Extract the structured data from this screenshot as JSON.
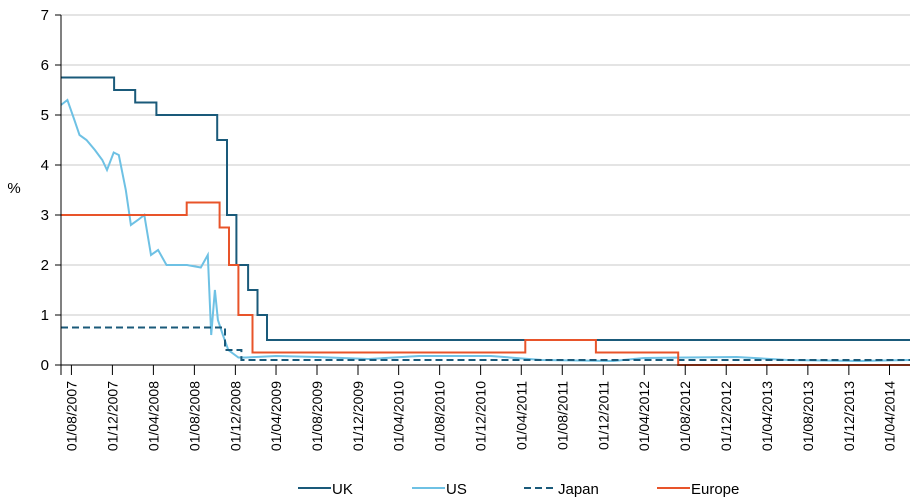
{
  "chart_data": {
    "type": "line",
    "ylabel": "%",
    "ylim": [
      0,
      7
    ],
    "yticks": [
      0,
      1,
      2,
      3,
      4,
      5,
      6,
      7
    ],
    "grid": "horizontal",
    "legend": "bottom",
    "xlim": [
      "2007-07-01",
      "2014-06-01"
    ],
    "xticks": [
      {
        "date": "2007-08-01",
        "label": "01/08/2007"
      },
      {
        "date": "2007-12-01",
        "label": "01/12/2007"
      },
      {
        "date": "2008-04-01",
        "label": "01/04/2008"
      },
      {
        "date": "2008-08-01",
        "label": "01/08/2008"
      },
      {
        "date": "2008-12-01",
        "label": "01/12/2008"
      },
      {
        "date": "2009-04-01",
        "label": "01/04/2009"
      },
      {
        "date": "2009-08-01",
        "label": "01/08/2009"
      },
      {
        "date": "2009-12-01",
        "label": "01/12/2009"
      },
      {
        "date": "2010-04-01",
        "label": "01/04/2010"
      },
      {
        "date": "2010-08-01",
        "label": "01/08/2010"
      },
      {
        "date": "2010-12-01",
        "label": "01/12/2010"
      },
      {
        "date": "2011-04-01",
        "label": "01/04/2011"
      },
      {
        "date": "2011-08-01",
        "label": "01/08/2011"
      },
      {
        "date": "2011-12-01",
        "label": "01/12/2011"
      },
      {
        "date": "2012-04-01",
        "label": "01/04/2012"
      },
      {
        "date": "2012-08-01",
        "label": "01/08/2012"
      },
      {
        "date": "2012-12-01",
        "label": "01/12/2012"
      },
      {
        "date": "2013-04-01",
        "label": "01/04/2013"
      },
      {
        "date": "2013-08-01",
        "label": "01/08/2013"
      },
      {
        "date": "2013-12-01",
        "label": "01/12/2013"
      },
      {
        "date": "2014-04-01",
        "label": "01/04/2014"
      }
    ],
    "series": [
      {
        "name": "UK",
        "color": "#1a5a7a",
        "style": "solid",
        "step": true,
        "points": [
          [
            "2007-07-01",
            5.75
          ],
          [
            "2007-12-06",
            5.5
          ],
          [
            "2008-02-07",
            5.25
          ],
          [
            "2008-04-10",
            5.0
          ],
          [
            "2008-10-08",
            4.5
          ],
          [
            "2008-11-06",
            3.0
          ],
          [
            "2008-12-04",
            2.0
          ],
          [
            "2009-01-08",
            1.5
          ],
          [
            "2009-02-05",
            1.0
          ],
          [
            "2009-03-05",
            0.5
          ],
          [
            "2014-06-01",
            0.5
          ]
        ]
      },
      {
        "name": "US",
        "color": "#6ec1e4",
        "style": "solid",
        "step": false,
        "points": [
          [
            "2007-07-01",
            5.2
          ],
          [
            "2007-07-20",
            5.3
          ],
          [
            "2007-08-10",
            4.9
          ],
          [
            "2007-08-25",
            4.6
          ],
          [
            "2007-09-15",
            4.5
          ],
          [
            "2007-10-10",
            4.3
          ],
          [
            "2007-11-01",
            4.1
          ],
          [
            "2007-11-15",
            3.9
          ],
          [
            "2007-12-05",
            4.25
          ],
          [
            "2007-12-20",
            4.2
          ],
          [
            "2008-01-10",
            3.5
          ],
          [
            "2008-01-25",
            2.8
          ],
          [
            "2008-02-15",
            2.9
          ],
          [
            "2008-03-05",
            3.0
          ],
          [
            "2008-03-25",
            2.2
          ],
          [
            "2008-04-15",
            2.3
          ],
          [
            "2008-05-10",
            2.0
          ],
          [
            "2008-06-10",
            2.0
          ],
          [
            "2008-07-10",
            2.0
          ],
          [
            "2008-08-20",
            1.95
          ],
          [
            "2008-09-10",
            2.2
          ],
          [
            "2008-09-20",
            0.6
          ],
          [
            "2008-10-01",
            1.5
          ],
          [
            "2008-10-10",
            0.9
          ],
          [
            "2008-10-25",
            0.6
          ],
          [
            "2008-11-10",
            0.3
          ],
          [
            "2008-12-10",
            0.15
          ],
          [
            "2009-01-01",
            0.15
          ],
          [
            "2009-04-01",
            0.18
          ],
          [
            "2009-08-01",
            0.16
          ],
          [
            "2010-01-01",
            0.12
          ],
          [
            "2010-06-01",
            0.18
          ],
          [
            "2011-01-01",
            0.18
          ],
          [
            "2011-06-01",
            0.1
          ],
          [
            "2012-01-01",
            0.08
          ],
          [
            "2012-04-01",
            0.14
          ],
          [
            "2012-08-01",
            0.15
          ],
          [
            "2013-01-01",
            0.16
          ],
          [
            "2013-06-01",
            0.1
          ],
          [
            "2014-01-01",
            0.08
          ],
          [
            "2014-06-01",
            0.1
          ]
        ]
      },
      {
        "name": "Japan",
        "color": "#1a5a7a",
        "style": "dashed",
        "step": true,
        "points": [
          [
            "2007-07-01",
            0.75
          ],
          [
            "2008-10-31",
            0.3
          ],
          [
            "2008-12-19",
            0.1
          ],
          [
            "2014-06-01",
            0.1
          ]
        ]
      },
      {
        "name": "Europe",
        "color": "#e8542a",
        "style": "solid",
        "step": true,
        "points": [
          [
            "2007-07-01",
            3.0
          ],
          [
            "2008-07-09",
            3.25
          ],
          [
            "2008-10-15",
            2.75
          ],
          [
            "2008-11-12",
            2.0
          ],
          [
            "2008-12-10",
            1.0
          ],
          [
            "2009-01-21",
            0.25
          ],
          [
            "2010-01-01",
            0.25
          ],
          [
            "2011-04-13",
            0.5
          ],
          [
            "2011-11-09",
            0.25
          ],
          [
            "2012-07-11",
            0.0
          ],
          [
            "2014-06-01",
            0.0
          ]
        ]
      }
    ]
  }
}
